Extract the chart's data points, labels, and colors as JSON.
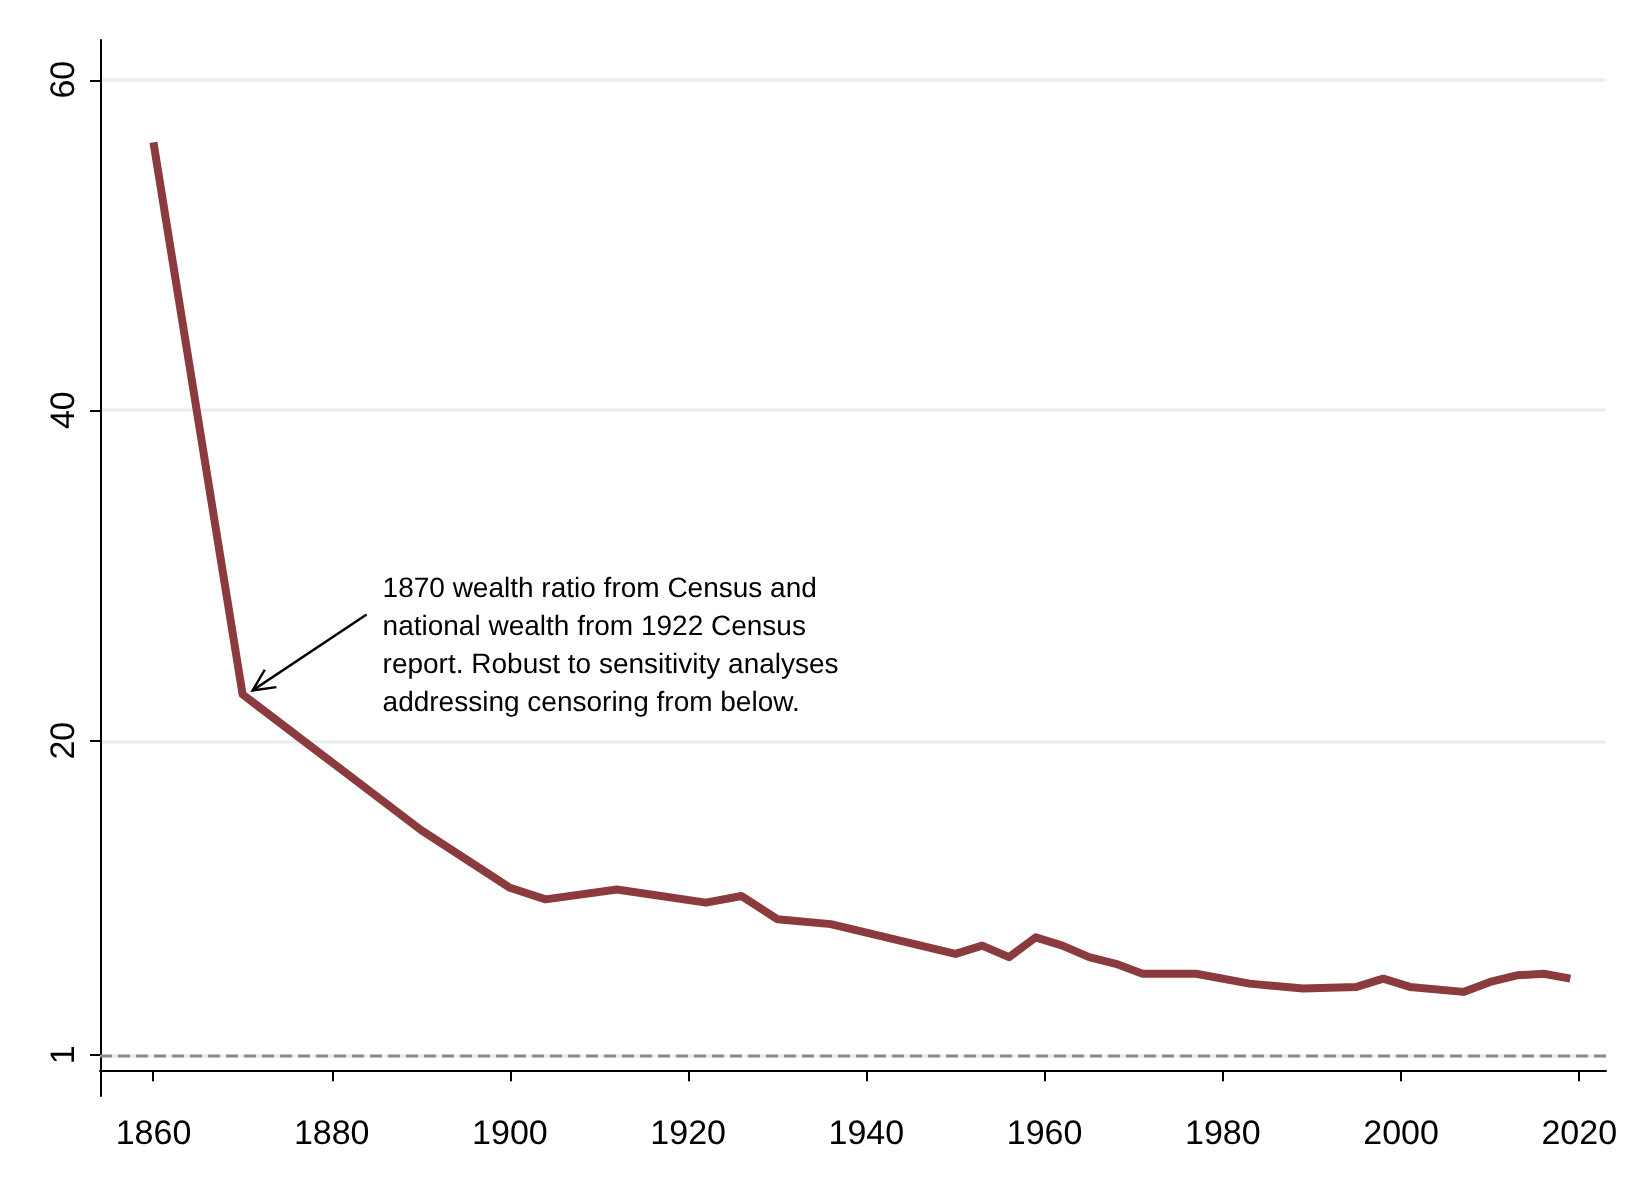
{
  "chart_data": {
    "type": "line",
    "x": [
      1860,
      1870,
      1880,
      1890,
      1900,
      1904,
      1912,
      1922,
      1926,
      1930,
      1936,
      1950,
      1953,
      1956,
      1959,
      1962,
      1965,
      1968,
      1971,
      1977,
      1983,
      1989,
      1995,
      1998,
      2001,
      2007,
      2010,
      2013,
      2016,
      2019
    ],
    "series": [
      {
        "color": "#8b3a3e",
        "values": [
          56.2,
          22.8,
          18.7,
          14.6,
          11.1,
          10.4,
          11.0,
          10.2,
          10.6,
          9.2,
          8.9,
          7.1,
          7.6,
          6.9,
          8.1,
          7.6,
          6.9,
          6.5,
          5.9,
          5.9,
          5.3,
          5.0,
          5.1,
          5.6,
          5.1,
          4.8,
          5.4,
          5.8,
          5.9,
          5.6
        ]
      }
    ],
    "xlim": [
      1854,
      2023
    ],
    "xticks": [
      1860,
      1880,
      1900,
      1920,
      1940,
      1960,
      1980,
      2000,
      2020
    ],
    "ylim": [
      -1.5,
      62.4
    ],
    "yticks": [
      1,
      20,
      40,
      60
    ],
    "grid": "y",
    "marker": "none",
    "line_style": "solid",
    "ref_lines": [
      {
        "axis": "y",
        "value": 1,
        "color": "#8c8c8c",
        "line_style": "dashed"
      }
    ],
    "annotations": [
      {
        "text": "1870 wealth ratio from Census and\nnational wealth from 1922 Census\nreport. Robust to sensitivity analyses\naddressing censoring from below.",
        "x": 1870,
        "y": 22.8
      }
    ]
  }
}
